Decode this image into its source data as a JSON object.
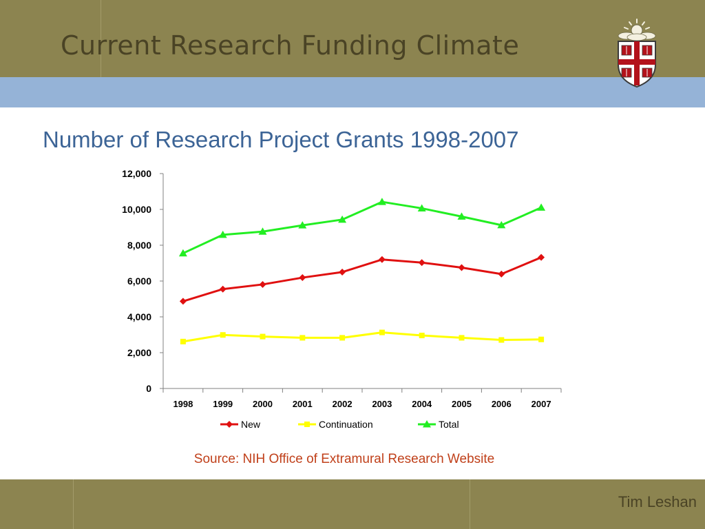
{
  "slide": {
    "title": "Current Research Funding Climate",
    "author": "Tim Leshan",
    "source": "Source: NIH Office of Extramural Research Website"
  },
  "colors": {
    "header_band": "#8c8450",
    "blue_band": "#95b3d7",
    "title_text": "#4a4325",
    "chart_title": "#3c6496",
    "source_text": "#c0401a"
  },
  "logo": {
    "icon": "university-crest-icon"
  },
  "chart_data": {
    "type": "line",
    "title": "Number of Research Project Grants 1998-2007",
    "xlabel": "",
    "ylabel": "",
    "categories": [
      "1998",
      "1999",
      "2000",
      "2001",
      "2002",
      "2003",
      "2004",
      "2005",
      "2006",
      "2007"
    ],
    "ylim": [
      0,
      12000
    ],
    "yticks": [
      0,
      2000,
      4000,
      6000,
      8000,
      10000,
      12000
    ],
    "ytick_labels": [
      "0",
      "2,000",
      "4,000",
      "6,000",
      "8,000",
      "10,000",
      "12,000"
    ],
    "grid": false,
    "legend_position": "bottom",
    "series": [
      {
        "name": "New",
        "color": "#e01010",
        "marker": "diamond",
        "values": [
          4870,
          5550,
          5810,
          6190,
          6500,
          7200,
          7030,
          6750,
          6390,
          7320
        ]
      },
      {
        "name": "Continuation",
        "color": "#ffff00",
        "marker": "square",
        "values": [
          2620,
          2990,
          2900,
          2830,
          2830,
          3130,
          2960,
          2830,
          2710,
          2740
        ]
      },
      {
        "name": "Total",
        "color": "#22ee22",
        "marker": "triangle",
        "values": [
          7550,
          8580,
          8760,
          9110,
          9430,
          10420,
          10060,
          9600,
          9120,
          10100
        ]
      }
    ]
  }
}
